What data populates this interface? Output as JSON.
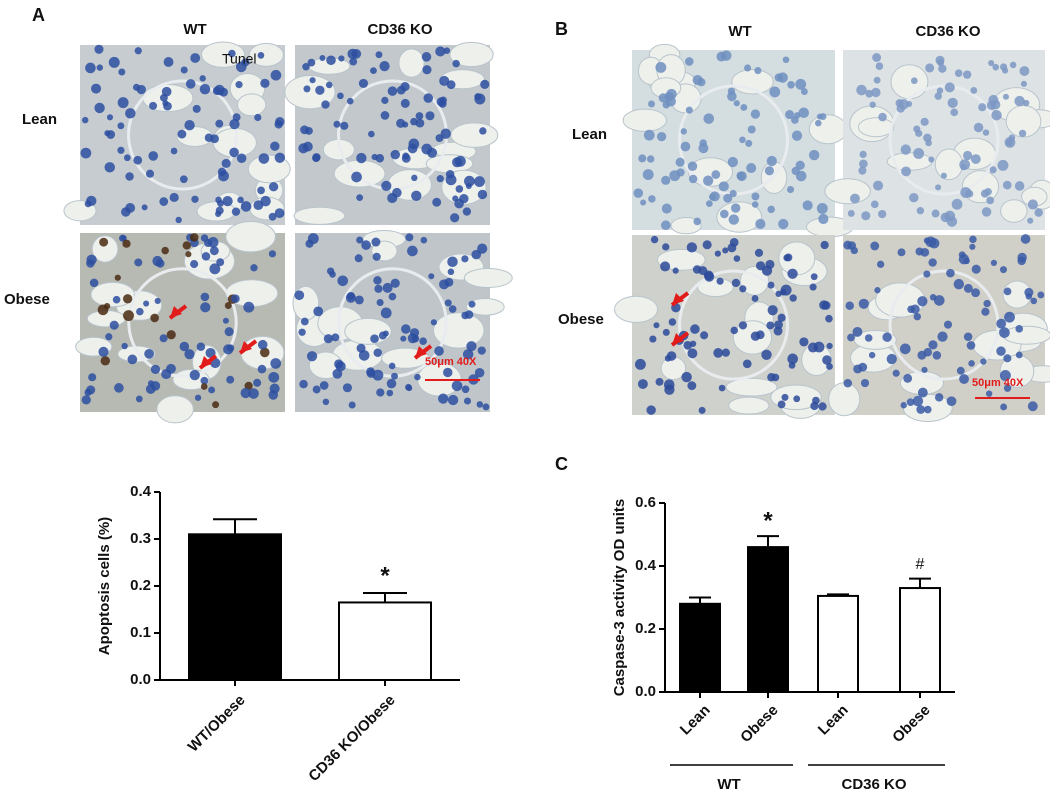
{
  "panels": {
    "a": {
      "label": "A",
      "columns": [
        "WT",
        "CD36 KO"
      ],
      "rows": [
        "Lean",
        "Obese"
      ],
      "stain": "Tunel",
      "scale": "50μm 40X"
    },
    "b": {
      "label": "B",
      "columns": [
        "WT",
        "CD36 KO"
      ],
      "rows": [
        "Lean",
        "Obese"
      ],
      "scale": "50μm 40X"
    },
    "c": {
      "label": "C"
    }
  },
  "chart_data": [
    {
      "type": "bar",
      "y_label": "Apoptosis cells (%)",
      "categories": [
        "WT/Obese",
        "CD36 KO/Obese"
      ],
      "values": [
        0.31,
        0.165
      ],
      "errors": [
        0.032,
        0.02
      ],
      "colors": [
        "#000000",
        "#ffffff"
      ],
      "ylim": [
        0,
        0.4
      ],
      "yticks": [
        {
          "value": 0,
          "label": "0.0"
        },
        0.1,
        0.2,
        0.3,
        0.4
      ],
      "annotations": [
        {
          "category": "CD36 KO/Obese",
          "text": "*"
        }
      ]
    },
    {
      "type": "grouped-bar",
      "y_label": "Caspase-3 activity OD units",
      "groups": [
        {
          "label": "WT",
          "categories": [
            "Lean",
            "Obese"
          ],
          "values": [
            0.28,
            0.46
          ],
          "errors": [
            0.02,
            0.035
          ],
          "color": "#000000"
        },
        {
          "label": "CD36 KO",
          "categories": [
            "Lean",
            "Obese"
          ],
          "values": [
            0.305,
            0.33
          ],
          "errors": [
            0.005,
            0.03
          ],
          "color": "#ffffff"
        }
      ],
      "ylim": [
        0,
        0.6
      ],
      "yticks": [
        {
          "value": 0,
          "label": "0.0"
        },
        0.2,
        0.4,
        0.6
      ],
      "annotations": [
        {
          "group": "WT",
          "category": "Obese",
          "text": "*"
        },
        {
          "group": "CD36 KO",
          "category": "Obese",
          "text": "#"
        }
      ]
    }
  ]
}
